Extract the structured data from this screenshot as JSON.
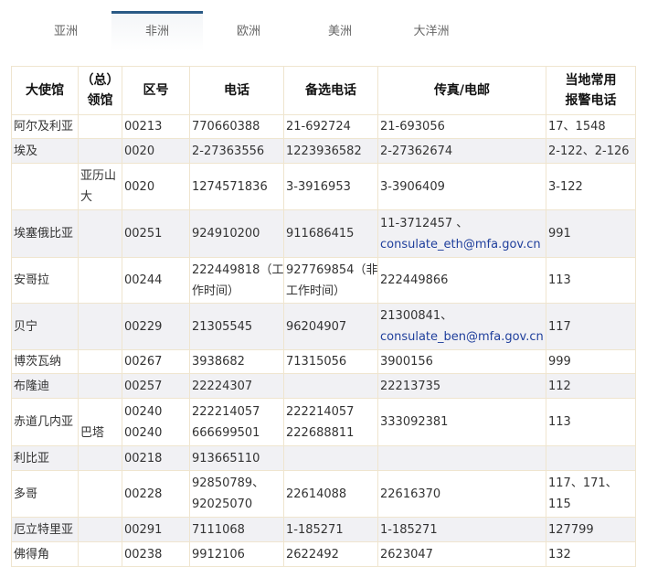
{
  "tabs": [
    {
      "label": "亚洲"
    },
    {
      "label": "非洲",
      "active": true
    },
    {
      "label": "欧洲"
    },
    {
      "label": "美洲"
    },
    {
      "label": "大洋洲"
    }
  ],
  "table": {
    "headers": [
      [
        "大使馆"
      ],
      [
        "（总）",
        "领馆"
      ],
      [
        "区号"
      ],
      [
        "电话"
      ],
      [
        "备选电话"
      ],
      [
        "传真/电邮"
      ],
      [
        "当地常用",
        "报警电话"
      ]
    ],
    "rows": [
      {
        "cells": [
          [
            "阿尔及利亚"
          ],
          [],
          [
            "00213"
          ],
          [
            "770660388"
          ],
          [
            "21-692724"
          ],
          [
            "21-693056"
          ],
          [
            "17、1548"
          ]
        ]
      },
      {
        "cells": [
          [
            "埃及"
          ],
          [],
          [
            "0020"
          ],
          [
            "2-27363556"
          ],
          [
            "1223936582"
          ],
          [
            "2-27362674"
          ],
          [
            "2-122、2-126"
          ]
        ]
      },
      {
        "cells": [
          [],
          [
            "亚历山",
            "大"
          ],
          [
            "0020"
          ],
          [
            "1274571836"
          ],
          [
            "3-3916953"
          ],
          [
            "3-3906409"
          ],
          [
            "3-122"
          ]
        ]
      },
      {
        "cells": [
          [
            "埃塞俄比亚"
          ],
          [],
          [
            "00251"
          ],
          [
            "924910200"
          ],
          [
            "911686415"
          ],
          [
            "11-3712457 、",
            "consulate_eth@mfa.gov.cn"
          ],
          [
            "991"
          ]
        ]
      },
      {
        "cells": [
          [
            "安哥拉"
          ],
          [],
          [
            "00244"
          ],
          [
            "222449818（工",
            "作时间）"
          ],
          [
            "927769854（非",
            "工作时间）"
          ],
          [
            "222449866"
          ],
          [
            "113"
          ]
        ]
      },
      {
        "cells": [
          [
            "贝宁"
          ],
          [],
          [
            "00229"
          ],
          [
            "21305545"
          ],
          [
            "96204907"
          ],
          [
            "21300841、",
            "consulate_ben@mfa.gov.cn"
          ],
          [
            "117"
          ]
        ]
      },
      {
        "cells": [
          [
            "博茨瓦纳"
          ],
          [],
          [
            "00267"
          ],
          [
            "3938682"
          ],
          [
            "71315056"
          ],
          [
            "3900156"
          ],
          [
            "999"
          ]
        ]
      },
      {
        "cells": [
          [
            "布隆迪"
          ],
          [],
          [
            "00257"
          ],
          [
            "22224307"
          ],
          [],
          [
            "22213735"
          ],
          [
            "112"
          ]
        ]
      },
      {
        "cells": [
          [
            "赤道几内亚",
            ""
          ],
          [
            "",
            "巴塔"
          ],
          [
            "00240",
            "00240"
          ],
          [
            "222214057",
            "666699501"
          ],
          [
            "222214057",
            "222688811"
          ],
          [
            "333092381",
            ""
          ],
          [
            "113"
          ]
        ]
      },
      {
        "cells": [
          [
            "利比亚"
          ],
          [],
          [
            "00218"
          ],
          [
            "913665110"
          ],
          [],
          [],
          []
        ]
      },
      {
        "cells": [
          [
            "多哥"
          ],
          [],
          [
            "00228"
          ],
          [
            "92850789、",
            "92025070"
          ],
          [
            "22614088"
          ],
          [
            "22616370"
          ],
          [
            "117、171、",
            "115"
          ]
        ]
      },
      {
        "cells": [
          [
            "厄立特里亚"
          ],
          [],
          [
            "00291"
          ],
          [
            "7111068"
          ],
          [
            "1-185271"
          ],
          [
            "1-185271"
          ],
          [
            "127799"
          ]
        ]
      },
      {
        "cells": [
          [
            "佛得角"
          ],
          [],
          [
            "00238"
          ],
          [
            "9912106"
          ],
          [
            "2622492"
          ],
          [
            "2623047"
          ],
          [
            "132"
          ]
        ]
      }
    ]
  },
  "colors": {
    "accent": "#2a5a85",
    "email": "#1f3f9c",
    "row_alt": "#f1f1f4",
    "border": "#efe5cf"
  }
}
